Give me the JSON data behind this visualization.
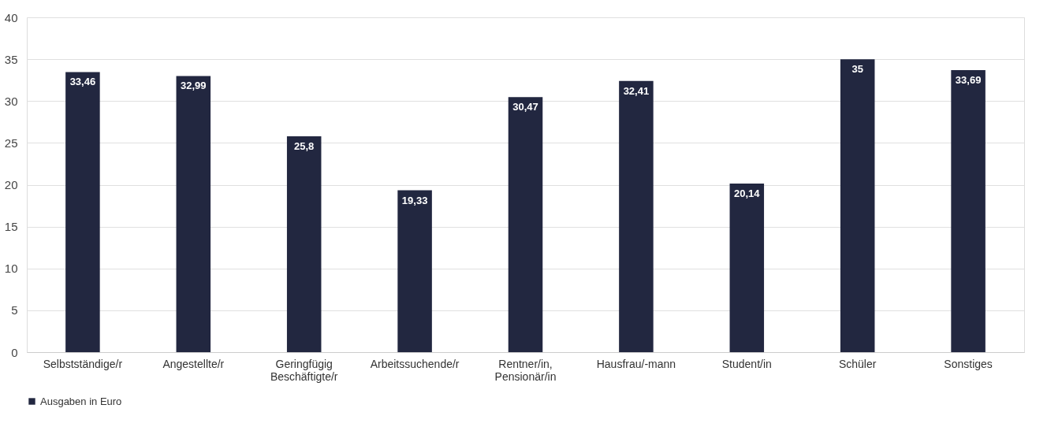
{
  "chart_data": {
    "type": "bar",
    "categories": [
      "Selbstständige/r",
      "Angestellte/r",
      "Geringfügig Beschäftigte/r",
      "Arbeitssuchende/r",
      "Rentner/in, Pensionär/in",
      "Hausfrau/-mann",
      "Student/in",
      "Schüler",
      "Sonstiges"
    ],
    "series": [
      {
        "name": "Ausgaben in Euro",
        "color": "#222740",
        "values": [
          33.46,
          32.99,
          25.8,
          19.33,
          30.47,
          32.41,
          20.14,
          35,
          33.69
        ],
        "value_labels": [
          "33,46",
          "32,99",
          "25,8",
          "19,33",
          "30,47",
          "32,41",
          "20,14",
          "35",
          "33,69"
        ]
      }
    ],
    "ylim": [
      0,
      40
    ],
    "yticks": [
      0,
      5,
      10,
      15,
      20,
      25,
      30,
      35,
      40
    ],
    "grid": "y",
    "legend": "bottom"
  }
}
